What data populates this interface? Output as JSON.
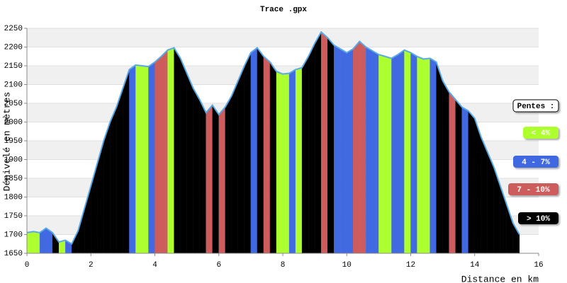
{
  "chart_data": {
    "type": "area",
    "title": "Trace .gpx",
    "y_label": "Dénivelé en mètres",
    "x_label": "Distance en km",
    "x": [
      0,
      0.2,
      0.4,
      0.6,
      0.8,
      1.0,
      1.2,
      1.4,
      1.6,
      1.8,
      2.0,
      2.2,
      2.4,
      2.6,
      2.8,
      3.0,
      3.2,
      3.4,
      3.6,
      3.8,
      4.0,
      4.2,
      4.4,
      4.6,
      4.8,
      5.0,
      5.2,
      5.4,
      5.6,
      5.8,
      6.0,
      6.2,
      6.4,
      6.6,
      6.8,
      7.0,
      7.2,
      7.4,
      7.6,
      7.8,
      8.0,
      8.2,
      8.4,
      8.6,
      8.8,
      9.0,
      9.2,
      9.4,
      9.6,
      9.8,
      10.0,
      10.2,
      10.4,
      10.6,
      10.8,
      11.0,
      11.2,
      11.4,
      11.6,
      11.8,
      12.0,
      12.2,
      12.4,
      12.6,
      12.8,
      13.0,
      13.2,
      13.4,
      13.6,
      13.8,
      14.0,
      14.2,
      14.4,
      14.6,
      14.8,
      15.0,
      15.2,
      15.4
    ],
    "series": [
      {
        "name": "Trace .gpx",
        "color": "#5aa9e6",
        "values": [
          1705,
          1708,
          1705,
          1717,
          1705,
          1680,
          1685,
          1675,
          1710,
          1770,
          1830,
          1890,
          1950,
          2000,
          2040,
          2090,
          2140,
          2152,
          2150,
          2148,
          2160,
          2175,
          2192,
          2198,
          2170,
          2130,
          2090,
          2060,
          2025,
          2045,
          2020,
          2040,
          2070,
          2110,
          2150,
          2185,
          2198,
          2175,
          2160,
          2135,
          2128,
          2130,
          2140,
          2145,
          2175,
          2210,
          2240,
          2225,
          2205,
          2195,
          2185,
          2195,
          2215,
          2200,
          2190,
          2180,
          2175,
          2170,
          2180,
          2192,
          2185,
          2175,
          2168,
          2170,
          2160,
          2110,
          2080,
          2060,
          2040,
          2030,
          2010,
          1960,
          1920,
          1880,
          1830,
          1780,
          1730,
          1700
        ]
      }
    ],
    "xlim": [
      0,
      16
    ],
    "xticks": [
      0,
      2,
      4,
      6,
      8,
      10,
      12,
      14,
      16
    ],
    "ylim": [
      1650,
      2250
    ],
    "yticks": [
      1650,
      1700,
      1750,
      1800,
      1850,
      1900,
      1950,
      2000,
      2050,
      2100,
      2150,
      2200,
      2250
    ],
    "grid": true,
    "legend": {
      "title": "Pentes :",
      "items": [
        {
          "label": "< 4%",
          "color": "#adff2f",
          "limit": 4
        },
        {
          "label": "4 - 7%",
          "color": "#4169e1",
          "limit": 7
        },
        {
          "label": "7 - 10%",
          "color": "#cd5c5c",
          "limit": 10
        },
        {
          "label": "> 10%",
          "color": "#000000"
        }
      ]
    }
  }
}
